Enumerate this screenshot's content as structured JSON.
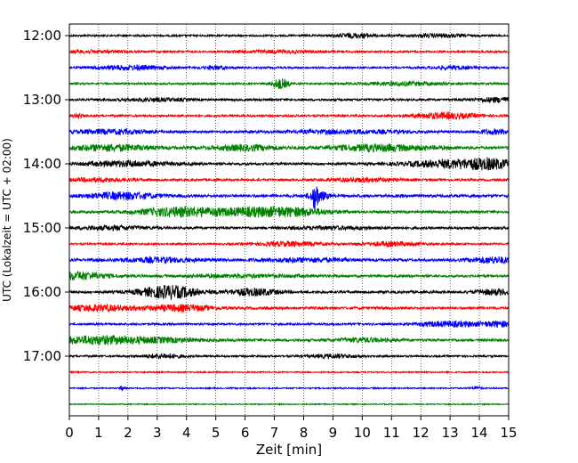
{
  "chart_data": {
    "type": "line",
    "subtype": "helicorder",
    "xlabel": "Zeit  [min]",
    "ylabel": "UTC (Lokalzeit = UTC + 02:00)",
    "xlim": [
      0,
      15
    ],
    "x_ticks": [
      "0",
      "1",
      "2",
      "3",
      "4",
      "5",
      "6",
      "7",
      "8",
      "9",
      "10",
      "11",
      "12",
      "13",
      "14",
      "15"
    ],
    "y_tick_labels": [
      "12:00",
      "13:00",
      "14:00",
      "15:00",
      "16:00",
      "17:00"
    ],
    "grid": "vertical dotted",
    "colors": [
      "#000000",
      "#ff0000",
      "#0000ff",
      "#008000"
    ],
    "traces": [
      {
        "start": "12:00",
        "color": "#000000",
        "base_amp": 0.12,
        "bursts": [
          [
            9.8,
            0.5,
            0.25
          ],
          [
            12.6,
            0.7,
            0.18
          ]
        ]
      },
      {
        "start": "12:15",
        "color": "#ff0000",
        "base_amp": 0.12,
        "bursts": [
          [
            0.8,
            0.8,
            0.15
          ],
          [
            7.0,
            1.0,
            0.15
          ]
        ]
      },
      {
        "start": "12:30",
        "color": "#0000ff",
        "base_amp": 0.12,
        "bursts": [
          [
            2.0,
            0.9,
            0.25
          ],
          [
            5.0,
            0.3,
            0.2
          ],
          [
            13.1,
            0.5,
            0.18
          ]
        ]
      },
      {
        "start": "12:45",
        "color": "#008000",
        "base_amp": 0.12,
        "bursts": [
          [
            7.2,
            0.2,
            0.6
          ],
          [
            11.5,
            1.0,
            0.2
          ]
        ]
      },
      {
        "start": "13:00",
        "color": "#000000",
        "base_amp": 0.14,
        "bursts": [
          [
            3.0,
            0.8,
            0.15
          ],
          [
            14.6,
            0.6,
            0.25
          ]
        ]
      },
      {
        "start": "13:15",
        "color": "#ff0000",
        "base_amp": 0.13,
        "bursts": [
          [
            0.3,
            0.1,
            0.3
          ],
          [
            12.8,
            0.8,
            0.35
          ]
        ]
      },
      {
        "start": "13:30",
        "color": "#0000ff",
        "base_amp": 0.14,
        "bursts": [
          [
            1.5,
            1.0,
            0.25
          ],
          [
            9.5,
            1.5,
            0.2
          ],
          [
            14.6,
            0.5,
            0.25
          ]
        ]
      },
      {
        "start": "13:45",
        "color": "#008000",
        "base_amp": 0.18,
        "bursts": [
          [
            1.4,
            1.0,
            0.35
          ],
          [
            6.0,
            0.8,
            0.3
          ],
          [
            10.6,
            1.2,
            0.35
          ]
        ]
      },
      {
        "start": "14:00",
        "color": "#000000",
        "base_amp": 0.16,
        "bursts": [
          [
            2.0,
            1.0,
            0.3
          ],
          [
            13.0,
            1.0,
            0.45
          ],
          [
            14.4,
            0.6,
            0.5
          ]
        ]
      },
      {
        "start": "14:15",
        "color": "#ff0000",
        "base_amp": 0.14,
        "bursts": [
          [
            1.0,
            0.8,
            0.2
          ],
          [
            10.0,
            0.8,
            0.2
          ]
        ]
      },
      {
        "start": "14:30",
        "color": "#0000ff",
        "base_amp": 0.18,
        "bursts": [
          [
            1.8,
            0.8,
            0.4
          ],
          [
            8.4,
            0.06,
            1.6
          ],
          [
            8.5,
            0.25,
            0.5
          ]
        ]
      },
      {
        "start": "14:45",
        "color": "#008000",
        "base_amp": 0.16,
        "bursts": [
          [
            3.8,
            1.0,
            0.55
          ],
          [
            6.5,
            1.0,
            0.5
          ],
          [
            8.0,
            0.7,
            0.3
          ]
        ]
      },
      {
        "start": "15:00",
        "color": "#000000",
        "base_amp": 0.16,
        "bursts": [
          [
            1.5,
            0.8,
            0.2
          ],
          [
            9.0,
            1.0,
            0.15
          ]
        ]
      },
      {
        "start": "15:15",
        "color": "#ff0000",
        "base_amp": 0.12,
        "bursts": [
          [
            7.5,
            0.8,
            0.25
          ],
          [
            11.0,
            0.7,
            0.25
          ]
        ]
      },
      {
        "start": "15:30",
        "color": "#0000ff",
        "base_amp": 0.16,
        "bursts": [
          [
            3.0,
            1.0,
            0.25
          ],
          [
            8.0,
            1.2,
            0.2
          ],
          [
            14.5,
            0.6,
            0.35
          ]
        ]
      },
      {
        "start": "15:45",
        "color": "#008000",
        "base_amp": 0.15,
        "bursts": [
          [
            0.3,
            0.7,
            0.45
          ],
          [
            6.0,
            1.5,
            0.15
          ]
        ]
      },
      {
        "start": "16:00",
        "color": "#000000",
        "base_amp": 0.16,
        "bursts": [
          [
            3.4,
            0.7,
            0.75
          ],
          [
            6.3,
            0.6,
            0.4
          ],
          [
            14.6,
            0.5,
            0.3
          ]
        ]
      },
      {
        "start": "16:15",
        "color": "#ff0000",
        "base_amp": 0.16,
        "bursts": [
          [
            1.0,
            0.8,
            0.35
          ],
          [
            3.8,
            0.8,
            0.35
          ]
        ]
      },
      {
        "start": "16:30",
        "color": "#0000ff",
        "base_amp": 0.13,
        "bursts": [
          [
            13.0,
            0.8,
            0.3
          ],
          [
            14.7,
            0.4,
            0.3
          ]
        ]
      },
      {
        "start": "16:45",
        "color": "#008000",
        "base_amp": 0.16,
        "bursts": [
          [
            0.8,
            1.0,
            0.45
          ],
          [
            3.0,
            1.0,
            0.25
          ],
          [
            10.0,
            0.7,
            0.2
          ]
        ]
      },
      {
        "start": "17:00",
        "color": "#000000",
        "base_amp": 0.12,
        "bursts": [
          [
            3.2,
            0.5,
            0.25
          ],
          [
            9.1,
            0.6,
            0.2
          ]
        ]
      },
      {
        "start": "17:15",
        "color": "#ff0000",
        "base_amp": 0.08,
        "bursts": []
      },
      {
        "start": "17:30",
        "color": "#0000ff",
        "base_amp": 0.08,
        "bursts": [
          [
            1.8,
            0.05,
            0.3
          ],
          [
            13.9,
            0.1,
            0.25
          ]
        ]
      },
      {
        "start": "17:45",
        "color": "#008000",
        "base_amp": 0.07,
        "bursts": []
      }
    ]
  }
}
